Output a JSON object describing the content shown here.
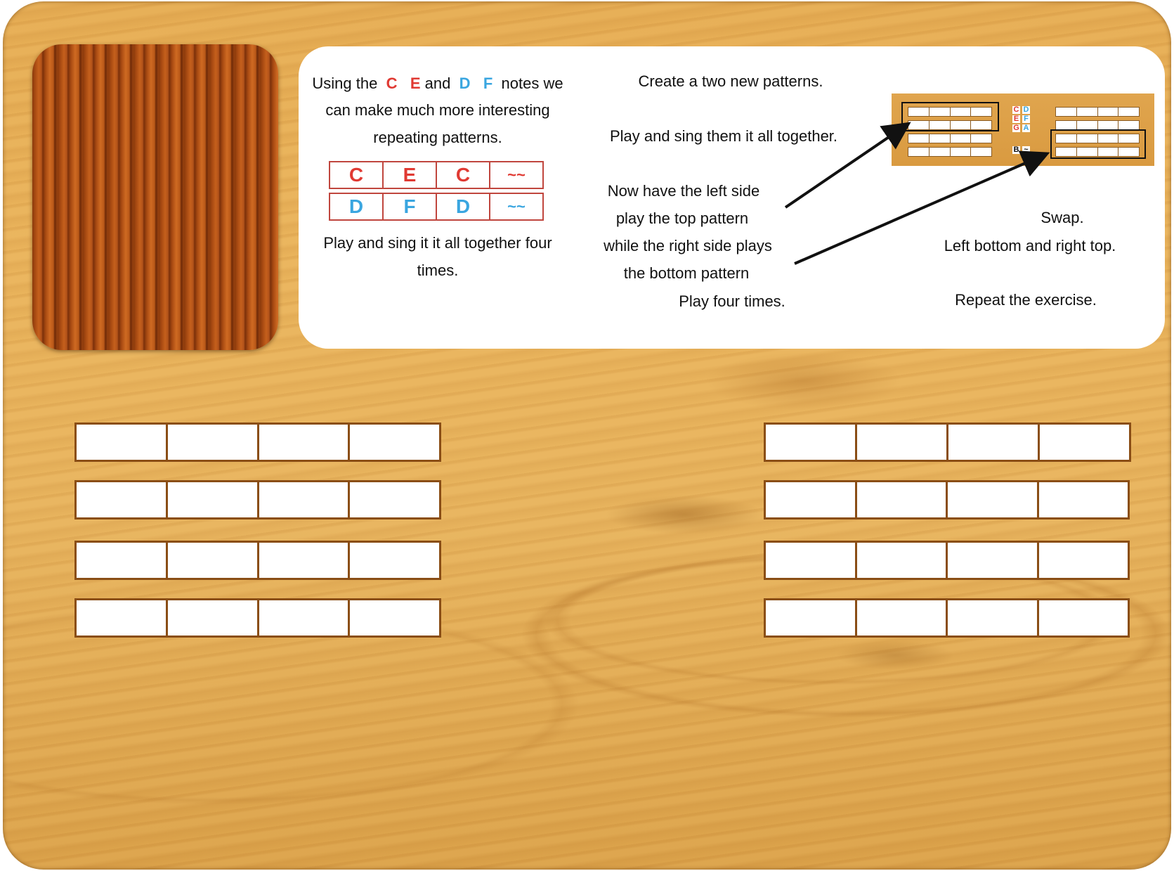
{
  "panel": {
    "intro_line1_pre": "Using the",
    "note_c": "C",
    "note_e": "E",
    "intro_and": "and",
    "note_d": "D",
    "note_f": "F",
    "intro_line1_post": "notes we",
    "intro_line2": "can make much more interesting",
    "intro_line3": "repeating patterns.",
    "pattern_rows": [
      [
        "C",
        "E",
        "C",
        "~~"
      ],
      [
        "D",
        "F",
        "D",
        "~~"
      ]
    ],
    "play_line1": "Play and sing it it all together four",
    "play_line2": "times.",
    "create_text": "Create a two new patterns.",
    "play_sing_text": "Play and sing them it all together.",
    "now_line1": "Now have the left side",
    "now_line2": "play the top pattern",
    "now_line3": "while the right side plays",
    "now_line4": "the bottom pattern",
    "play_four": "Play four times.",
    "swap": "Swap.",
    "left_bottom": "Left bottom and right top.",
    "repeat": "Repeat the exercise."
  },
  "thumbnail": {
    "notes": [
      "C",
      "D",
      "E",
      "F",
      "G",
      "A",
      "B",
      "~"
    ]
  },
  "colors": {
    "red_note": "#e03a33",
    "blue_note": "#3aa6e0",
    "cell_border": "#8a4e16"
  },
  "left_grid": {
    "rows": 4,
    "cells_per_row": 4
  },
  "right_grid": {
    "rows": 4,
    "cells_per_row": 4
  }
}
